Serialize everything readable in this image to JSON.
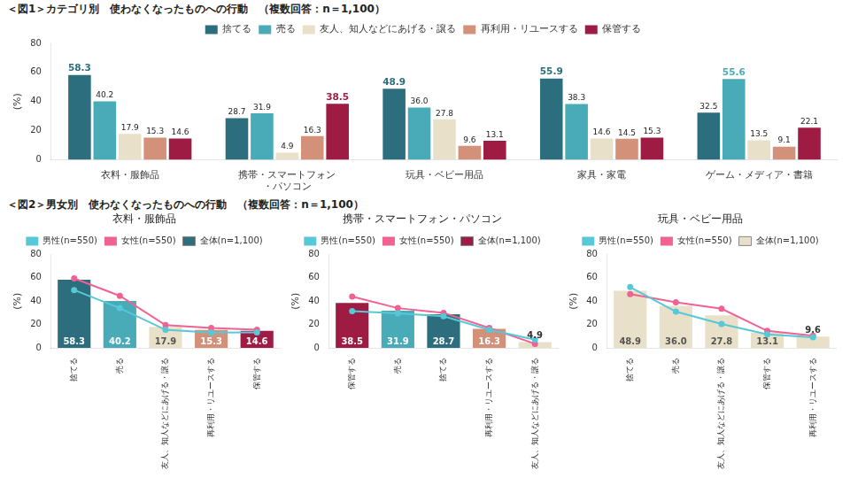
{
  "chart_data": [
    {
      "type": "bar",
      "title": "＜図1＞カテゴリ別　使わなくなったものへの行動　（複数回答：n＝1,100）",
      "categories": [
        "衣料・服飾品",
        "携帯・スマートフォン\n・パソコン",
        "玩具・ベビー用品",
        "家具・家電",
        "ゲーム・メディア・書籍"
      ],
      "series": [
        {
          "name": "捨てる",
          "color": "#2d6e7e",
          "values": [
            58.3,
            28.7,
            48.9,
            55.9,
            32.5
          ]
        },
        {
          "name": "売る",
          "color": "#4aabb8",
          "values": [
            40.2,
            31.9,
            36.0,
            38.3,
            55.6
          ],
          "value_labels": [
            "40.2",
            "31.9",
            "36.0",
            "38.3",
            "55.6"
          ]
        },
        {
          "name": "友人、知人などにあげる・譲る",
          "color": "#e8e0c8",
          "values": [
            17.9,
            4.9,
            27.8,
            14.6,
            13.5
          ]
        },
        {
          "name": "再利用・リユースする",
          "color": "#d4917a",
          "values": [
            15.3,
            16.3,
            9.6,
            14.5,
            9.1
          ]
        },
        {
          "name": "保管する",
          "color": "#9e1b44",
          "values": [
            14.6,
            38.5,
            13.1,
            15.3,
            22.1
          ]
        }
      ],
      "ylabel": "(%)",
      "ylim": [
        0,
        80
      ],
      "yticks": [
        0,
        20,
        40,
        60,
        80
      ],
      "grid": false,
      "legend": "top",
      "data_labels": true
    },
    {
      "type": "bar",
      "title": "＜図2＞男女別　使わなくなったものへの行動　（複数回答：n＝1,100）",
      "subtitle": "衣料・服飾品",
      "categories": [
        "捨てる",
        "売る",
        "友人、知人などにあげる・譲る",
        "再利用・リユースする",
        "保管する"
      ],
      "series": [
        {
          "name": "全体(n=1,100)",
          "type": "bar",
          "colors": [
            "#2d6e7e",
            "#4aabb8",
            "#e8e0c8",
            "#d4917a",
            "#9e1b44"
          ],
          "values": [
            58.3,
            40.2,
            17.9,
            15.3,
            14.6
          ],
          "data_labels": true
        },
        {
          "name": "男性(n=550)",
          "type": "line",
          "color": "#56c8d8",
          "values": [
            49.5,
            34.0,
            15.5,
            13.0,
            13.2
          ]
        },
        {
          "name": "女性(n=550)",
          "type": "line",
          "color": "#f06292",
          "values": [
            59.5,
            44.5,
            19.5,
            17.0,
            15.5
          ]
        }
      ],
      "ylabel": "(%)",
      "ylim": [
        0,
        80
      ],
      "yticks": [
        0,
        20,
        40,
        60,
        80
      ],
      "grid": false,
      "legend": "top"
    },
    {
      "type": "bar",
      "subtitle": "携帯・スマートフォン・パソコン",
      "categories": [
        "保管する",
        "売る",
        "捨てる",
        "再利用・リユースする",
        "友人、知人などにあげる・譲る"
      ],
      "series": [
        {
          "name": "全体(n=1,100)",
          "type": "bar",
          "colors": [
            "#9e1b44",
            "#4aabb8",
            "#2d6e7e",
            "#d4917a",
            "#e8e0c8"
          ],
          "values": [
            38.5,
            31.9,
            28.7,
            16.3,
            4.9
          ],
          "data_labels": true
        },
        {
          "name": "男性(n=550)",
          "type": "line",
          "color": "#56c8d8",
          "values": [
            31.5,
            29.5,
            27.0,
            15.5,
            7.0
          ]
        },
        {
          "name": "女性(n=550)",
          "type": "line",
          "color": "#f06292",
          "values": [
            44.0,
            34.0,
            30.0,
            17.0,
            3.5
          ]
        }
      ],
      "ylabel": "(%)",
      "ylim": [
        0,
        80
      ],
      "yticks": [
        0,
        20,
        40,
        60,
        80
      ],
      "grid": false,
      "legend": "top"
    },
    {
      "type": "bar",
      "subtitle": "玩具・ベビー用品",
      "categories": [
        "捨てる",
        "売る",
        "友人、知人などにあげる・譲る",
        "保管する",
        "再利用・リユースする"
      ],
      "series": [
        {
          "name": "全体(n=1,100)",
          "type": "bar",
          "colors": [
            "#e8e0c8",
            "#e8e0c8",
            "#e8e0c8",
            "#e8e0c8",
            "#e8e0c8"
          ],
          "values": [
            48.9,
            36.0,
            27.8,
            13.1,
            9.6
          ],
          "value_labels": [
            "48.9",
            "36.0",
            "27.8",
            "13.1",
            "9.6"
          ],
          "data_labels": true
        },
        {
          "name": "男性(n=550)",
          "type": "line",
          "color": "#56c8d8",
          "values": [
            52.0,
            31.0,
            20.5,
            11.5,
            9.0
          ]
        },
        {
          "name": "女性(n=550)",
          "type": "line",
          "color": "#f06292",
          "values": [
            46.0,
            39.0,
            33.5,
            14.5,
            10.5
          ]
        }
      ],
      "ylabel": "(%)",
      "ylim": [
        0,
        80
      ],
      "yticks": [
        0,
        20,
        40,
        60,
        80
      ],
      "grid": false,
      "legend": "top"
    }
  ]
}
